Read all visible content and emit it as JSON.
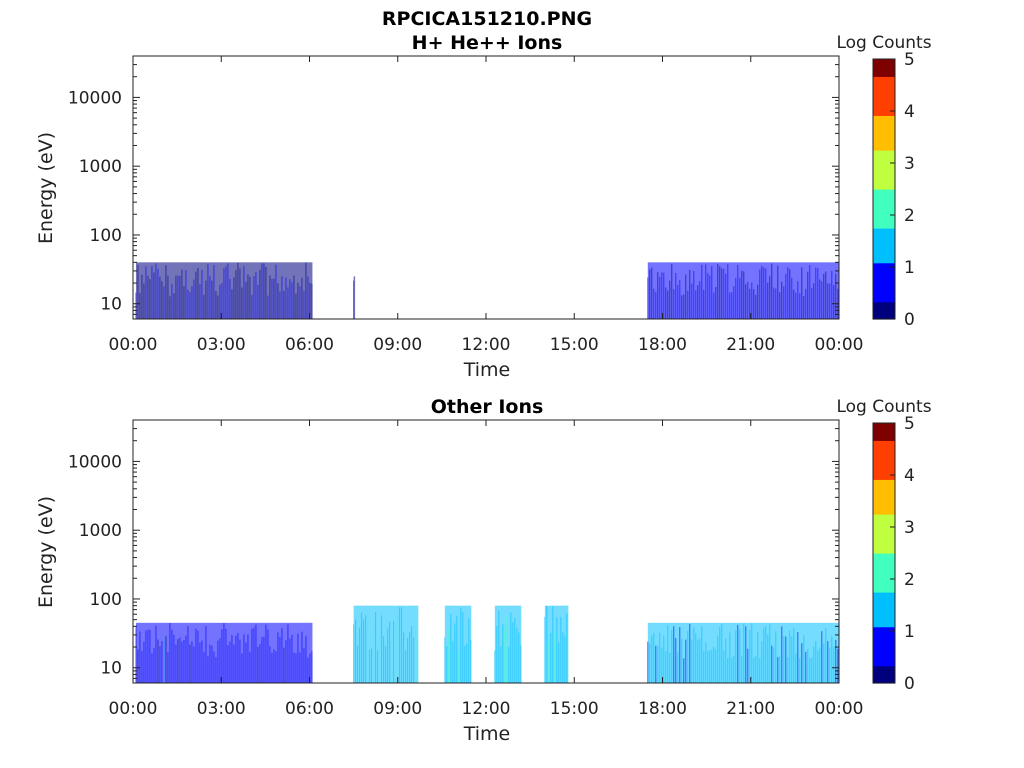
{
  "figure": {
    "title": "RPCICA151210.PNG",
    "colorbar_label": "Log Counts",
    "colorbar_ticks": [
      "0",
      "1",
      "2",
      "3",
      "4",
      "5"
    ],
    "colormap": [
      "#00007f",
      "#0000ff",
      "#00bfff",
      "#40ffbf",
      "#bfff40",
      "#ffbf00",
      "#ff3f00",
      "#7f0000"
    ]
  },
  "chart_data": [
    {
      "type": "heatmap",
      "title": "H+ He++ Ions",
      "xlabel": "Time",
      "ylabel": "Energy (eV)",
      "xticks": [
        "00:00",
        "03:00",
        "06:00",
        "09:00",
        "12:00",
        "15:00",
        "18:00",
        "21:00",
        "00:00"
      ],
      "yticks": [
        "10",
        "100",
        "1000",
        "10000"
      ],
      "yscale": "log",
      "xlim_hours": [
        0,
        24
      ],
      "ylim_eV": [
        6,
        40000
      ],
      "clim_log_counts": [
        0,
        5
      ],
      "blocks": [
        {
          "t_start": 0.1,
          "t_end": 6.1,
          "e_low": 6,
          "e_high": 40,
          "level": 0.35
        },
        {
          "t_start": 7.5,
          "t_end": 7.55,
          "e_low": 6,
          "e_high": 25,
          "level": 0.2
        },
        {
          "t_start": 17.5,
          "t_end": 24.0,
          "e_low": 6,
          "e_high": 40,
          "level": 0.4
        }
      ]
    },
    {
      "type": "heatmap",
      "title": "Other Ions",
      "xlabel": "Time",
      "ylabel": "Energy (eV)",
      "xticks": [
        "00:00",
        "03:00",
        "06:00",
        "09:00",
        "12:00",
        "15:00",
        "18:00",
        "21:00",
        "00:00"
      ],
      "yticks": [
        "10",
        "100",
        "1000",
        "10000"
      ],
      "yscale": "log",
      "xlim_hours": [
        0,
        24
      ],
      "ylim_eV": [
        6,
        40000
      ],
      "clim_log_counts": [
        0,
        5
      ],
      "blocks": [
        {
          "t_start": 0.1,
          "t_end": 6.1,
          "e_low": 6,
          "e_high": 45,
          "level": 0.7
        },
        {
          "t_start": 7.5,
          "t_end": 9.7,
          "e_low": 6,
          "e_high": 80,
          "level": 1.6
        },
        {
          "t_start": 10.6,
          "t_end": 11.5,
          "e_low": 6,
          "e_high": 80,
          "level": 1.6
        },
        {
          "t_start": 12.3,
          "t_end": 13.2,
          "e_low": 6,
          "e_high": 80,
          "level": 1.6
        },
        {
          "t_start": 14.0,
          "t_end": 14.8,
          "e_low": 6,
          "e_high": 80,
          "level": 1.6
        },
        {
          "t_start": 17.5,
          "t_end": 24.0,
          "e_low": 6,
          "e_high": 45,
          "level": 1.3
        }
      ]
    }
  ]
}
